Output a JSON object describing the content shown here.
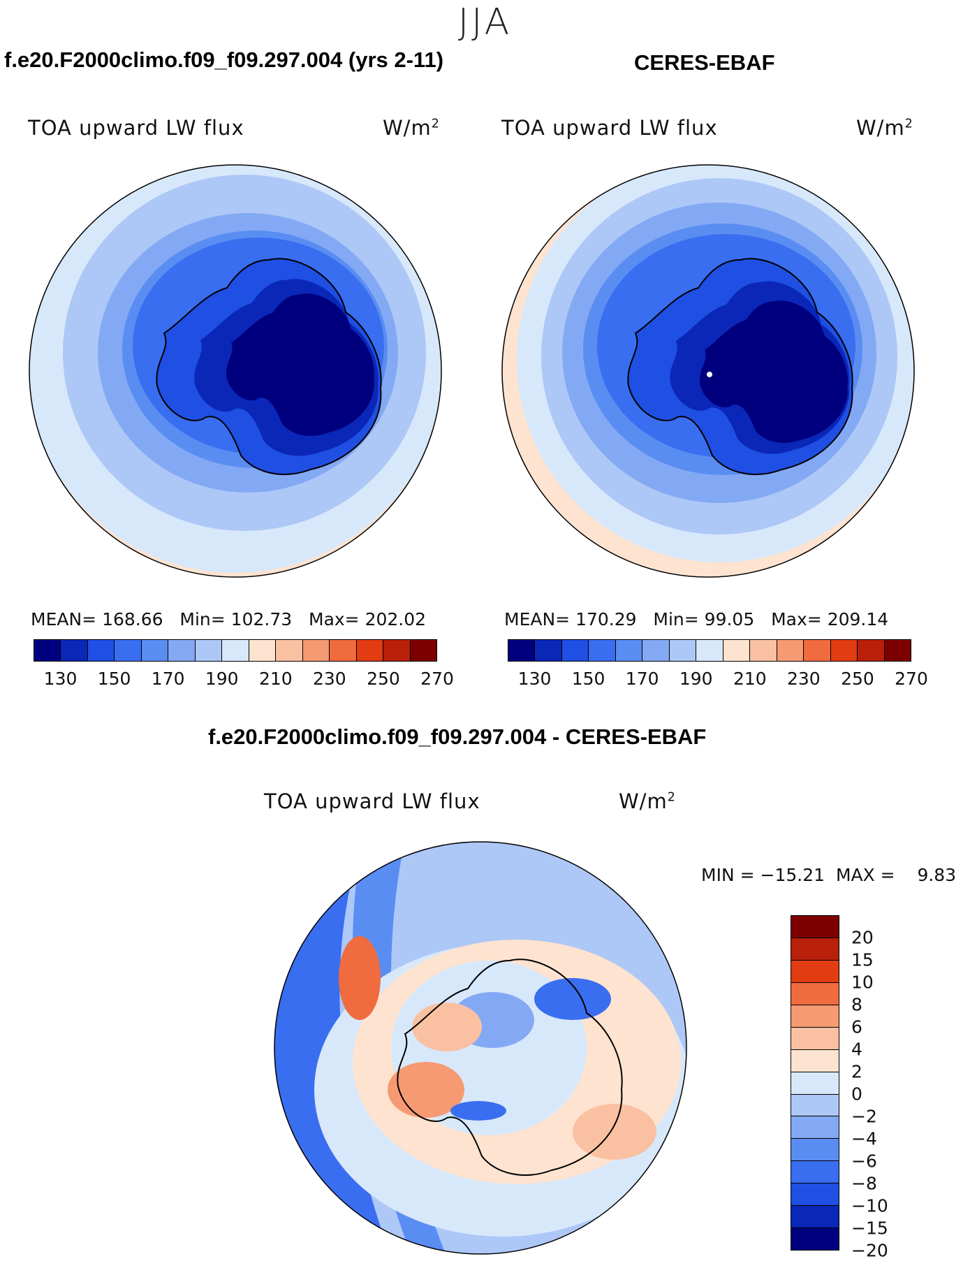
{
  "season": "JJA",
  "panels": [
    {
      "title": "f.e20.F2000climo.f09_f09.297.004 (yrs 2-11)",
      "variable": "TOA upward LW flux",
      "units": "W/m",
      "units_sup": "2",
      "stats": {
        "mean_label": "MEAN=",
        "mean": "168.66",
        "min_label": "Min=",
        "min": "102.73",
        "max_label": "Max=",
        "max": "202.02"
      }
    },
    {
      "title": "CERES-EBAF",
      "variable": "TOA upward LW flux",
      "units": "W/m",
      "units_sup": "2",
      "stats": {
        "mean_label": "MEAN=",
        "mean": "170.29",
        "min_label": "Min=",
        "min": "99.05",
        "max_label": "Max=",
        "max": "209.14"
      }
    }
  ],
  "abs_colorbar": {
    "colors": [
      "#00007f",
      "#0a27b8",
      "#1f4fe3",
      "#3a6ef0",
      "#5a8df2",
      "#84a9f4",
      "#adc8f7",
      "#d8e8fb",
      "#fde3d0",
      "#f9c1a2",
      "#f59a72",
      "#f06b3d",
      "#e23c12",
      "#b8200a",
      "#7d0000"
    ],
    "ticks": [
      "130",
      "150",
      "170",
      "190",
      "210",
      "230",
      "250",
      "270"
    ]
  },
  "diff_panel": {
    "title": "f.e20.F2000climo.f09_f09.297.004 - CERES-EBAF",
    "variable": "TOA upward LW flux",
    "units": "W/m",
    "units_sup": "2",
    "minmax": {
      "min_label": "MIN =",
      "min": "−15.21",
      "max_label": "MAX =",
      "max": "9.83"
    }
  },
  "diff_colorbar": {
    "colors": [
      "#7d0000",
      "#b8200a",
      "#e23c12",
      "#f06b3d",
      "#f59a72",
      "#f9c1a2",
      "#fde3d0",
      "#d8e8fb",
      "#adc8f7",
      "#84a9f4",
      "#5a8df2",
      "#3a6ef0",
      "#1f4fe3",
      "#0a27b8",
      "#00007f"
    ],
    "ticks": [
      "20",
      "15",
      "10",
      "8",
      "6",
      "4",
      "2",
      "0",
      "−2",
      "−4",
      "−6",
      "−8",
      "−10",
      "−15",
      "−20"
    ]
  }
}
